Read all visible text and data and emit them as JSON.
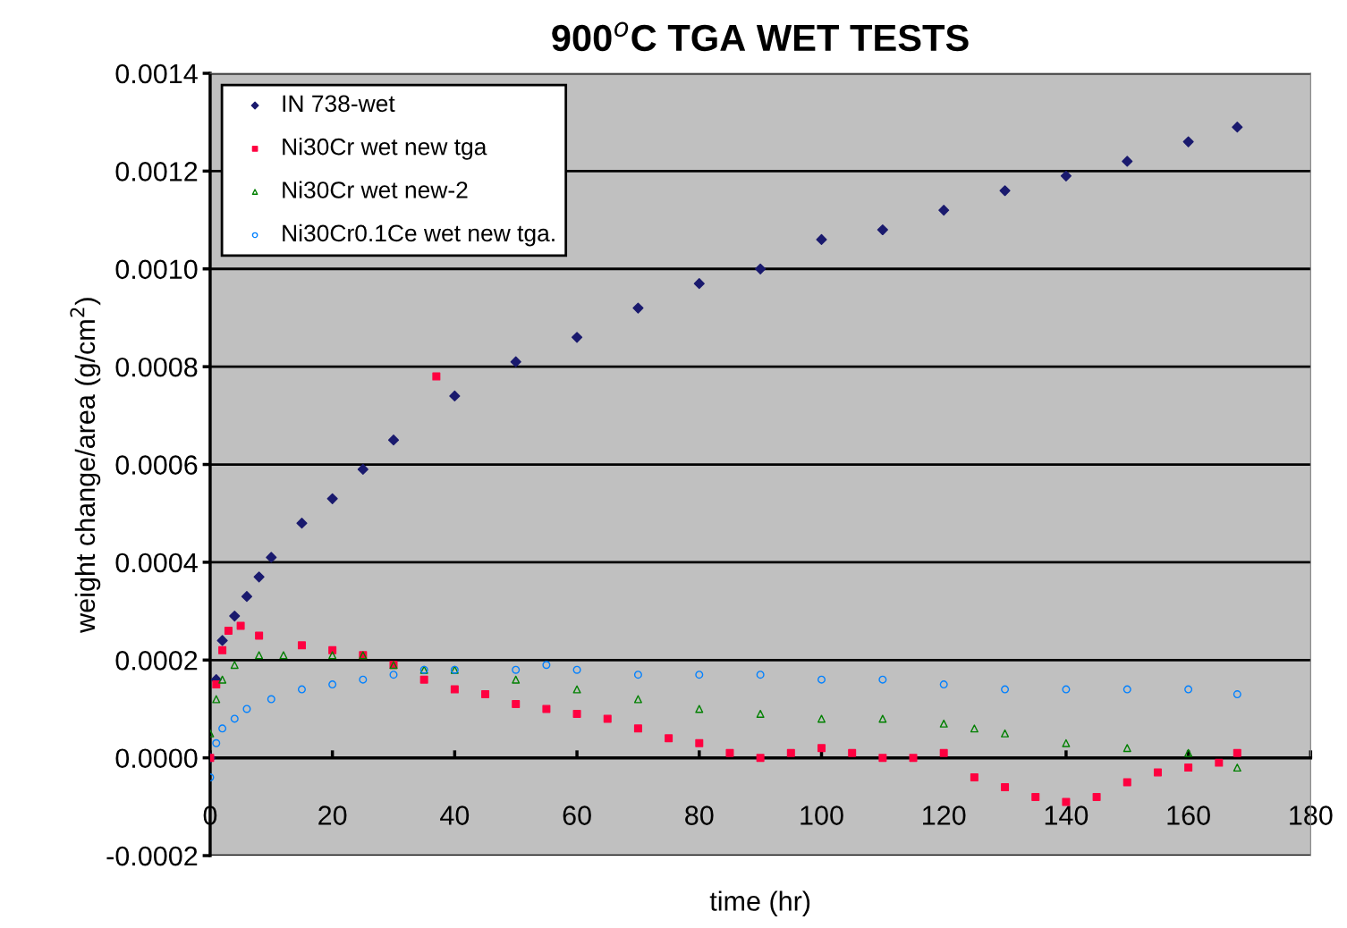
{
  "chart_data": {
    "type": "scatter",
    "title": "900$^{o}$C TGA WET TESTS",
    "xlabel": "time (hr)",
    "ylabel": "weight change/area (g/cm$^{2}$)",
    "xlim": [
      0,
      180
    ],
    "xticks": [
      0,
      20,
      40,
      60,
      80,
      100,
      120,
      140,
      160,
      180
    ],
    "ylim": [
      -0.0002,
      0.0014
    ],
    "yticks": [
      {
        "value": -0.0002,
        "label": "-0.0002"
      },
      {
        "value": 0.0,
        "label": "0.0000"
      },
      {
        "value": 0.0002,
        "label": "0.0002"
      },
      {
        "value": 0.0004,
        "label": "0.0004"
      },
      {
        "value": 0.0006,
        "label": "0.0006"
      },
      {
        "value": 0.0008,
        "label": "0.0008"
      },
      {
        "value": 0.001,
        "label": "0.0010"
      },
      {
        "value": 0.0012,
        "label": "0.0012"
      },
      {
        "value": 0.0014,
        "label": "0.0014"
      }
    ],
    "grid": "y",
    "legend": "top left",
    "series": [
      {
        "name": "IN 738-wet",
        "color": "#1a1a6e",
        "marker": "diamond",
        "x": [
          0,
          1,
          2,
          4,
          6,
          8,
          10,
          15,
          20,
          25,
          30,
          40,
          50,
          60,
          70,
          80,
          90,
          100,
          110,
          120,
          130,
          140,
          150,
          160,
          168
        ],
        "values": [
          0.0,
          0.00016,
          0.00024,
          0.00029,
          0.00033,
          0.00037,
          0.00041,
          0.00048,
          0.00053,
          0.00059,
          0.00065,
          0.00074,
          0.00081,
          0.00086,
          0.00092,
          0.00097,
          0.001,
          0.00106,
          0.00108,
          0.00112,
          0.00116,
          0.00119,
          0.00122,
          0.00126,
          0.00129
        ]
      },
      {
        "name": "Ni30Cr wet new tga",
        "color": "#ff0040",
        "marker": "square",
        "x": [
          0,
          1,
          2,
          3,
          5,
          8,
          15,
          20,
          25,
          30,
          35,
          37,
          40,
          45,
          50,
          55,
          60,
          65,
          70,
          75,
          80,
          85,
          90,
          95,
          100,
          105,
          110,
          115,
          120,
          125,
          130,
          135,
          140,
          145,
          150,
          155,
          160,
          165,
          168
        ],
        "values": [
          0.0,
          0.00015,
          0.00022,
          0.00026,
          0.00027,
          0.00025,
          0.00023,
          0.00022,
          0.00021,
          0.00019,
          0.00016,
          0.00078,
          0.00014,
          0.00013,
          0.00011,
          0.0001,
          9e-05,
          8e-05,
          6e-05,
          4e-05,
          3e-05,
          1e-05,
          0.0,
          1e-05,
          2e-05,
          1e-05,
          0.0,
          0.0,
          1e-05,
          -4e-05,
          -6e-05,
          -8e-05,
          -9e-05,
          -8e-05,
          -5e-05,
          -3e-05,
          -2e-05,
          -1e-05,
          1e-05
        ]
      },
      {
        "name": "Ni30Cr wet new-2",
        "color": "#008000",
        "marker": "triangle",
        "x": [
          0,
          1,
          2,
          4,
          8,
          12,
          20,
          25,
          30,
          35,
          40,
          50,
          60,
          70,
          80,
          90,
          100,
          110,
          120,
          125,
          130,
          140,
          150,
          160,
          168
        ],
        "values": [
          5e-05,
          0.00012,
          0.00016,
          0.00019,
          0.00021,
          0.00021,
          0.00021,
          0.00021,
          0.00019,
          0.00018,
          0.00018,
          0.00016,
          0.00014,
          0.00012,
          0.0001,
          9e-05,
          8e-05,
          8e-05,
          7e-05,
          6e-05,
          5e-05,
          3e-05,
          2e-05,
          1e-05,
          -2e-05
        ]
      },
      {
        "name": "Ni30Cr0.1Ce wet new tga.",
        "color": "#0080ff",
        "marker": "circle",
        "x": [
          0,
          1,
          2,
          4,
          6,
          10,
          15,
          20,
          25,
          30,
          35,
          40,
          50,
          55,
          60,
          70,
          80,
          90,
          100,
          110,
          120,
          130,
          140,
          150,
          160,
          168
        ],
        "values": [
          -4e-05,
          3e-05,
          6e-05,
          8e-05,
          0.0001,
          0.00012,
          0.00014,
          0.00015,
          0.00016,
          0.00017,
          0.00018,
          0.00018,
          0.00018,
          0.00019,
          0.00018,
          0.00017,
          0.00017,
          0.00017,
          0.00016,
          0.00016,
          0.00015,
          0.00014,
          0.00014,
          0.00014,
          0.00014,
          0.00013
        ]
      }
    ]
  }
}
